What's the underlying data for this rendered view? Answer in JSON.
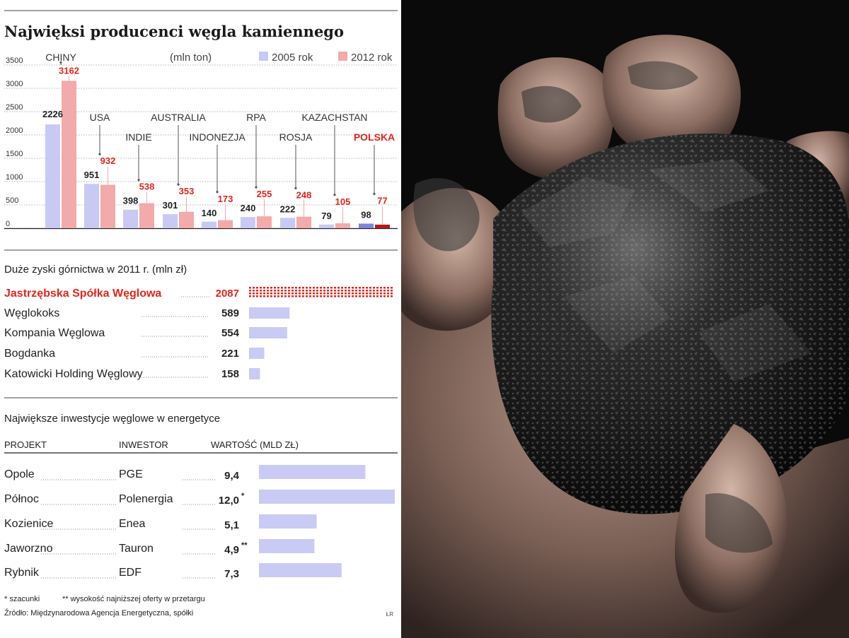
{
  "chart_data": [
    {
      "type": "bar",
      "title": "Najwięksi producenci węgla kamiennego",
      "unit_label": "(mln ton)",
      "ylim": [
        0,
        3500
      ],
      "yticks": [
        "3500",
        "3000",
        "2500",
        "2000",
        "1500",
        "1000",
        "500",
        "0"
      ],
      "grid": true,
      "legend_position": "top-right",
      "categories": [
        "CHINY",
        "USA",
        "INDIE",
        "AUSTRALIA",
        "INDONEZJA",
        "RPA",
        "ROSJA",
        "KAZACHSTAN",
        "POLSKA"
      ],
      "highlight_category": "POLSKA",
      "series": [
        {
          "name": "2005 rok",
          "values": [
            2226,
            951,
            398,
            301,
            140,
            240,
            222,
            79,
            98
          ],
          "labels": [
            "2226",
            "951",
            "398",
            "301",
            "140",
            "240",
            "222",
            "79",
            "98"
          ]
        },
        {
          "name": "2012 rok",
          "values": [
            3162,
            932,
            538,
            353,
            173,
            255,
            248,
            105,
            77
          ],
          "labels": [
            "3162",
            "932",
            "538",
            "353",
            "173",
            "255",
            "248",
            "105",
            "77"
          ]
        }
      ]
    },
    {
      "type": "bar",
      "orientation": "horizontal",
      "title": "Duże zyski górnictwa w 2011 r. (mln zł)",
      "categories": [
        "Jastrzębska Spółka Węglowa",
        "Węglokoks",
        "Kompania Węglowa",
        "Bogdanka",
        "Katowicki Holding Węglowy"
      ],
      "values": [
        2087,
        589,
        554,
        221,
        158
      ],
      "labels": [
        "2087",
        "589",
        "554",
        "221",
        "158"
      ],
      "highlight_category": "Jastrzębska Spółka Węglowa"
    },
    {
      "type": "table",
      "title": "Największe inwestycje węglowe w energetyce",
      "columns": [
        "PROJEKT",
        "INWESTOR",
        "WARTOŚĆ (MLD ZŁ)"
      ],
      "rows": [
        {
          "project": "Opole",
          "investor": "PGE",
          "value": 9.4,
          "label": "9,4",
          "mark": ""
        },
        {
          "project": "Północ",
          "investor": "Polenergia",
          "value": 12.0,
          "label": "12,0",
          "mark": "*"
        },
        {
          "project": "Kozienice",
          "investor": "Enea",
          "value": 5.1,
          "label": "5,1",
          "mark": ""
        },
        {
          "project": "Jaworzno",
          "investor": "Tauron",
          "value": 4.9,
          "label": "4,9",
          "mark": "**"
        },
        {
          "project": "Rybnik",
          "investor": "EDF",
          "value": 7.3,
          "label": "7,3",
          "mark": ""
        }
      ]
    }
  ],
  "footnotes": {
    "estimate": "* szacunki",
    "lowest_offer": "** wysokość najniższej oferty w przetargu",
    "source": "Źródło: Międzynarodowa Agencja Energetyczna, spółki",
    "credit": "ŁR"
  },
  "colors": {
    "series_2005": "#c8caf4",
    "series_2012": "#f2aaaa",
    "series_2005_poland": "#7f83d9",
    "series_2012_poland": "#b31b1b",
    "highlight": "#e1261c",
    "text": "#222222",
    "bar_h": "#c9cbf4"
  },
  "photo": {
    "icon": "hand-holding-coal-photo"
  }
}
